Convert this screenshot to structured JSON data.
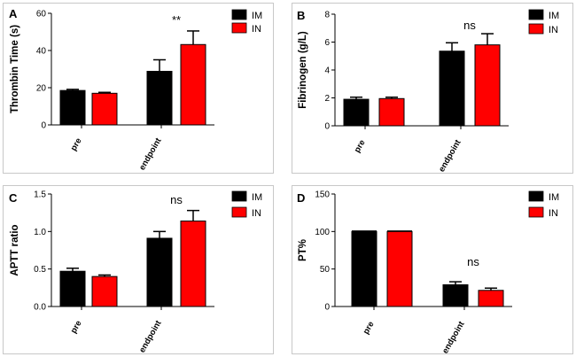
{
  "colors": {
    "IM": "#000000",
    "IN": "#ff0000"
  },
  "chart_data": [
    {
      "type": "bar",
      "letter": "A",
      "ylabel": "Thrombin Time (s)",
      "categories": [
        "pre",
        "endpoint"
      ],
      "series": [
        {
          "name": "IM",
          "values": [
            18.5,
            28.8
          ],
          "errors": [
            0.6,
            6.2
          ]
        },
        {
          "name": "IN",
          "values": [
            17.0,
            43.2
          ],
          "errors": [
            0.5,
            7.3
          ]
        }
      ],
      "ylim": [
        0,
        60
      ],
      "yticks": [
        0,
        20,
        40,
        60
      ],
      "significance": [
        {
          "category": "endpoint",
          "text": "**"
        }
      ]
    },
    {
      "type": "bar",
      "letter": "B",
      "ylabel": "Fibrinogen (g/L)",
      "categories": [
        "pre",
        "endpoint"
      ],
      "series": [
        {
          "name": "IM",
          "values": [
            1.9,
            5.35
          ],
          "errors": [
            0.15,
            0.6
          ]
        },
        {
          "name": "IN",
          "values": [
            1.95,
            5.8
          ],
          "errors": [
            0.1,
            0.8
          ]
        }
      ],
      "ylim": [
        0,
        8
      ],
      "yticks": [
        0,
        2,
        4,
        6,
        8
      ],
      "significance": [
        {
          "category": "endpoint",
          "text": "ns"
        }
      ]
    },
    {
      "type": "bar",
      "letter": "C",
      "ylabel": "APTT ratio",
      "categories": [
        "pre",
        "endpoint"
      ],
      "series": [
        {
          "name": "IM",
          "values": [
            0.47,
            0.91
          ],
          "errors": [
            0.04,
            0.09
          ]
        },
        {
          "name": "IN",
          "values": [
            0.4,
            1.14
          ],
          "errors": [
            0.02,
            0.14
          ]
        }
      ],
      "ylim": [
        0,
        1.5
      ],
      "yticks": [
        0.0,
        0.5,
        1.0,
        1.5
      ],
      "ytick_labels": [
        "0.0",
        "0.5",
        "1.0",
        "1.5"
      ],
      "significance": [
        {
          "category": "endpoint",
          "text": "ns"
        }
      ]
    },
    {
      "type": "bar",
      "letter": "D",
      "ylabel": "PT%",
      "categories": [
        "pre",
        "endpoint"
      ],
      "series": [
        {
          "name": "IM",
          "values": [
            100,
            29
          ],
          "errors": [
            0,
            4
          ]
        },
        {
          "name": "IN",
          "values": [
            100,
            21.5
          ],
          "errors": [
            0,
            3
          ]
        }
      ],
      "ylim": [
        0,
        150
      ],
      "yticks": [
        0,
        50,
        100,
        150
      ],
      "significance": [
        {
          "category": "endpoint",
          "text": "ns"
        }
      ]
    }
  ]
}
